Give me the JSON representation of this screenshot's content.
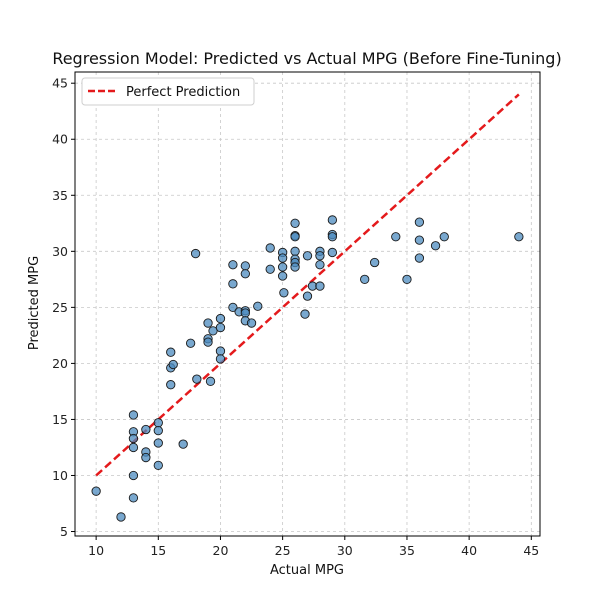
{
  "chart_data": {
    "type": "scatter",
    "title": "Regression Model: Predicted vs Actual MPG (Before Fine-Tuning)",
    "xlabel": "Actual MPG",
    "ylabel": "Predicted MPG",
    "xlim": [
      8.3,
      45.7
    ],
    "ylim": [
      4.6,
      46.0
    ],
    "x_ticks": [
      10,
      15,
      20,
      25,
      30,
      35,
      40,
      45
    ],
    "y_ticks": [
      5,
      10,
      15,
      20,
      25,
      30,
      35,
      40,
      45
    ],
    "grid": true,
    "legend_position": "top-left",
    "series": [
      {
        "name": "Perfect Prediction",
        "kind": "line",
        "style": "dashed",
        "color": "#e41a1c",
        "points": [
          [
            10,
            10
          ],
          [
            44,
            44
          ]
        ]
      },
      {
        "kind": "scatter",
        "color": "#4c8bbf",
        "edge_color": "#1a1a1a",
        "points": [
          [
            10,
            8.6
          ],
          [
            12,
            6.3
          ],
          [
            13,
            15.4
          ],
          [
            13,
            13.9
          ],
          [
            13,
            13.3
          ],
          [
            13,
            12.5
          ],
          [
            13,
            10.0
          ],
          [
            13,
            8.0
          ],
          [
            14,
            14.1
          ],
          [
            14,
            12.1
          ],
          [
            14,
            11.6
          ],
          [
            15,
            14.7
          ],
          [
            15,
            14.0
          ],
          [
            15,
            12.9
          ],
          [
            15,
            10.9
          ],
          [
            16,
            21.0
          ],
          [
            16,
            19.6
          ],
          [
            16.2,
            19.9
          ],
          [
            16,
            18.1
          ],
          [
            17,
            12.8
          ],
          [
            17.6,
            21.8
          ],
          [
            18,
            29.8
          ],
          [
            18.1,
            18.6
          ],
          [
            19,
            23.6
          ],
          [
            19,
            22.2
          ],
          [
            19,
            21.9
          ],
          [
            19.2,
            18.4
          ],
          [
            19.4,
            22.9
          ],
          [
            20,
            24.0
          ],
          [
            20,
            23.2
          ],
          [
            20,
            21.1
          ],
          [
            20,
            20.4
          ],
          [
            21,
            28.8
          ],
          [
            21,
            27.1
          ],
          [
            21,
            25.0
          ],
          [
            21.5,
            24.6
          ],
          [
            22,
            28.7
          ],
          [
            22,
            28.0
          ],
          [
            22,
            24.7
          ],
          [
            22,
            24.5
          ],
          [
            22,
            23.8
          ],
          [
            22.5,
            23.6
          ],
          [
            23,
            25.1
          ],
          [
            24,
            30.3
          ],
          [
            24,
            28.4
          ],
          [
            25,
            29.9
          ],
          [
            25,
            29.4
          ],
          [
            25,
            28.6
          ],
          [
            25,
            27.8
          ],
          [
            25.1,
            26.3
          ],
          [
            26,
            32.5
          ],
          [
            26,
            31.4
          ],
          [
            26,
            31.3
          ],
          [
            26,
            30.0
          ],
          [
            26,
            29.3
          ],
          [
            26,
            29.0
          ],
          [
            26,
            28.6
          ],
          [
            26.8,
            24.4
          ],
          [
            27,
            29.6
          ],
          [
            27,
            26.0
          ],
          [
            27.4,
            26.9
          ],
          [
            28,
            30.0
          ],
          [
            28,
            29.6
          ],
          [
            28,
            28.8
          ],
          [
            28,
            26.9
          ],
          [
            29,
            32.8
          ],
          [
            29,
            31.5
          ],
          [
            29,
            31.3
          ],
          [
            29,
            29.9
          ],
          [
            31.6,
            27.5
          ],
          [
            32.4,
            29.0
          ],
          [
            34.1,
            31.3
          ],
          [
            35,
            27.5
          ],
          [
            36,
            32.6
          ],
          [
            36,
            31.0
          ],
          [
            36,
            29.4
          ],
          [
            37.3,
            30.5
          ],
          [
            38,
            31.3
          ],
          [
            44,
            31.3
          ]
        ]
      }
    ]
  }
}
